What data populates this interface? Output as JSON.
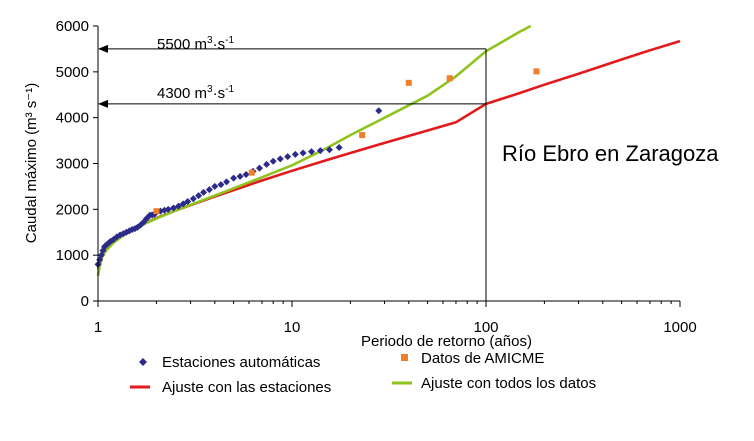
{
  "chart_data": {
    "type": "scatter",
    "title": "Río Ebro en Zaragoza",
    "xlabel": "Periodo de retorno (años)",
    "ylabel": "Caudal máximo (m³ s⁻¹)",
    "x_scale": "log",
    "xlim": [
      1,
      1000
    ],
    "ylim": [
      0,
      6000
    ],
    "x_ticks": [
      "1",
      "10",
      "100",
      "1000"
    ],
    "y_ticks": [
      "0",
      "1000",
      "2000",
      "3000",
      "4000",
      "5000",
      "6000"
    ],
    "grid": false,
    "legend_position": "bottom",
    "annotations": [
      {
        "text_main": "5500 m",
        "sup1": "3",
        "text_mid": "·s",
        "sup2": "-1",
        "value": 5500,
        "return_period": 100
      },
      {
        "text_main": "4300 m",
        "sup1": "3",
        "text_mid": "·s",
        "sup2": "-1",
        "value": 4300,
        "return_period": 100
      }
    ],
    "series": [
      {
        "name": "Estaciones automáticas",
        "kind": "points",
        "marker": "diamond",
        "color": "#2b2b8c",
        "x": [
          1.0,
          1.02,
          1.04,
          1.06,
          1.08,
          1.1,
          1.13,
          1.16,
          1.2,
          1.25,
          1.3,
          1.35,
          1.4,
          1.45,
          1.5,
          1.55,
          1.6,
          1.66,
          1.72,
          1.78,
          1.85,
          1.9,
          1.95,
          2.0,
          2.1,
          2.2,
          2.3,
          2.45,
          2.6,
          2.75,
          2.9,
          3.1,
          3.3,
          3.5,
          3.75,
          4.0,
          4.3,
          4.6,
          5.0,
          5.4,
          5.8,
          6.3,
          6.8,
          7.4,
          8.0,
          8.7,
          9.5,
          10.4,
          11.4,
          12.6,
          14.0,
          15.6,
          17.5,
          28.0
        ],
        "y": [
          800,
          900,
          1000,
          1100,
          1180,
          1220,
          1260,
          1300,
          1340,
          1400,
          1440,
          1470,
          1500,
          1530,
          1560,
          1580,
          1610,
          1660,
          1720,
          1800,
          1870,
          1880,
          1890,
          1940,
          1960,
          1980,
          2000,
          2030,
          2070,
          2120,
          2170,
          2230,
          2300,
          2370,
          2430,
          2500,
          2540,
          2600,
          2680,
          2720,
          2760,
          2830,
          2900,
          2980,
          3050,
          3100,
          3150,
          3200,
          3230,
          3260,
          3280,
          3300,
          3350,
          4150
        ]
      },
      {
        "name": "Datos de AMICME",
        "kind": "points",
        "marker": "square",
        "color": "#f07f2a",
        "x": [
          2.0,
          6.2,
          23.0,
          40.0,
          65.0,
          182.0
        ],
        "y": [
          1960,
          2800,
          3620,
          4760,
          4860,
          5010
        ]
      },
      {
        "name": "Ajuste con las estaciones",
        "kind": "line",
        "color": "#e31a1c",
        "x": [
          1.0,
          1.02,
          1.05,
          1.1,
          1.2,
          1.35,
          1.5,
          1.75,
          2.0,
          2.5,
          3,
          4,
          5,
          7,
          10,
          15,
          20,
          30,
          50,
          70,
          100,
          150,
          200,
          300,
          500,
          700,
          1000
        ],
        "y": [
          700,
          860,
          1000,
          1140,
          1300,
          1450,
          1560,
          1700,
          1810,
          1970,
          2090,
          2280,
          2420,
          2630,
          2840,
          3070,
          3230,
          3450,
          3720,
          3900,
          4300,
          4540,
          4720,
          4960,
          5270,
          5470,
          5670
        ]
      },
      {
        "name": "Ajuste con todos los datos",
        "kind": "line",
        "color": "#8fc31f",
        "x": [
          1.0,
          1.02,
          1.05,
          1.1,
          1.2,
          1.35,
          1.5,
          1.75,
          2.0,
          2.5,
          3,
          4,
          5,
          7,
          10,
          15,
          20,
          30,
          50,
          70,
          100,
          150,
          170
        ],
        "y": [
          550,
          760,
          950,
          1100,
          1270,
          1430,
          1540,
          1690,
          1800,
          1970,
          2100,
          2300,
          2460,
          2700,
          2960,
          3330,
          3620,
          4000,
          4480,
          4900,
          5450,
          5880,
          6000
        ]
      }
    ]
  }
}
